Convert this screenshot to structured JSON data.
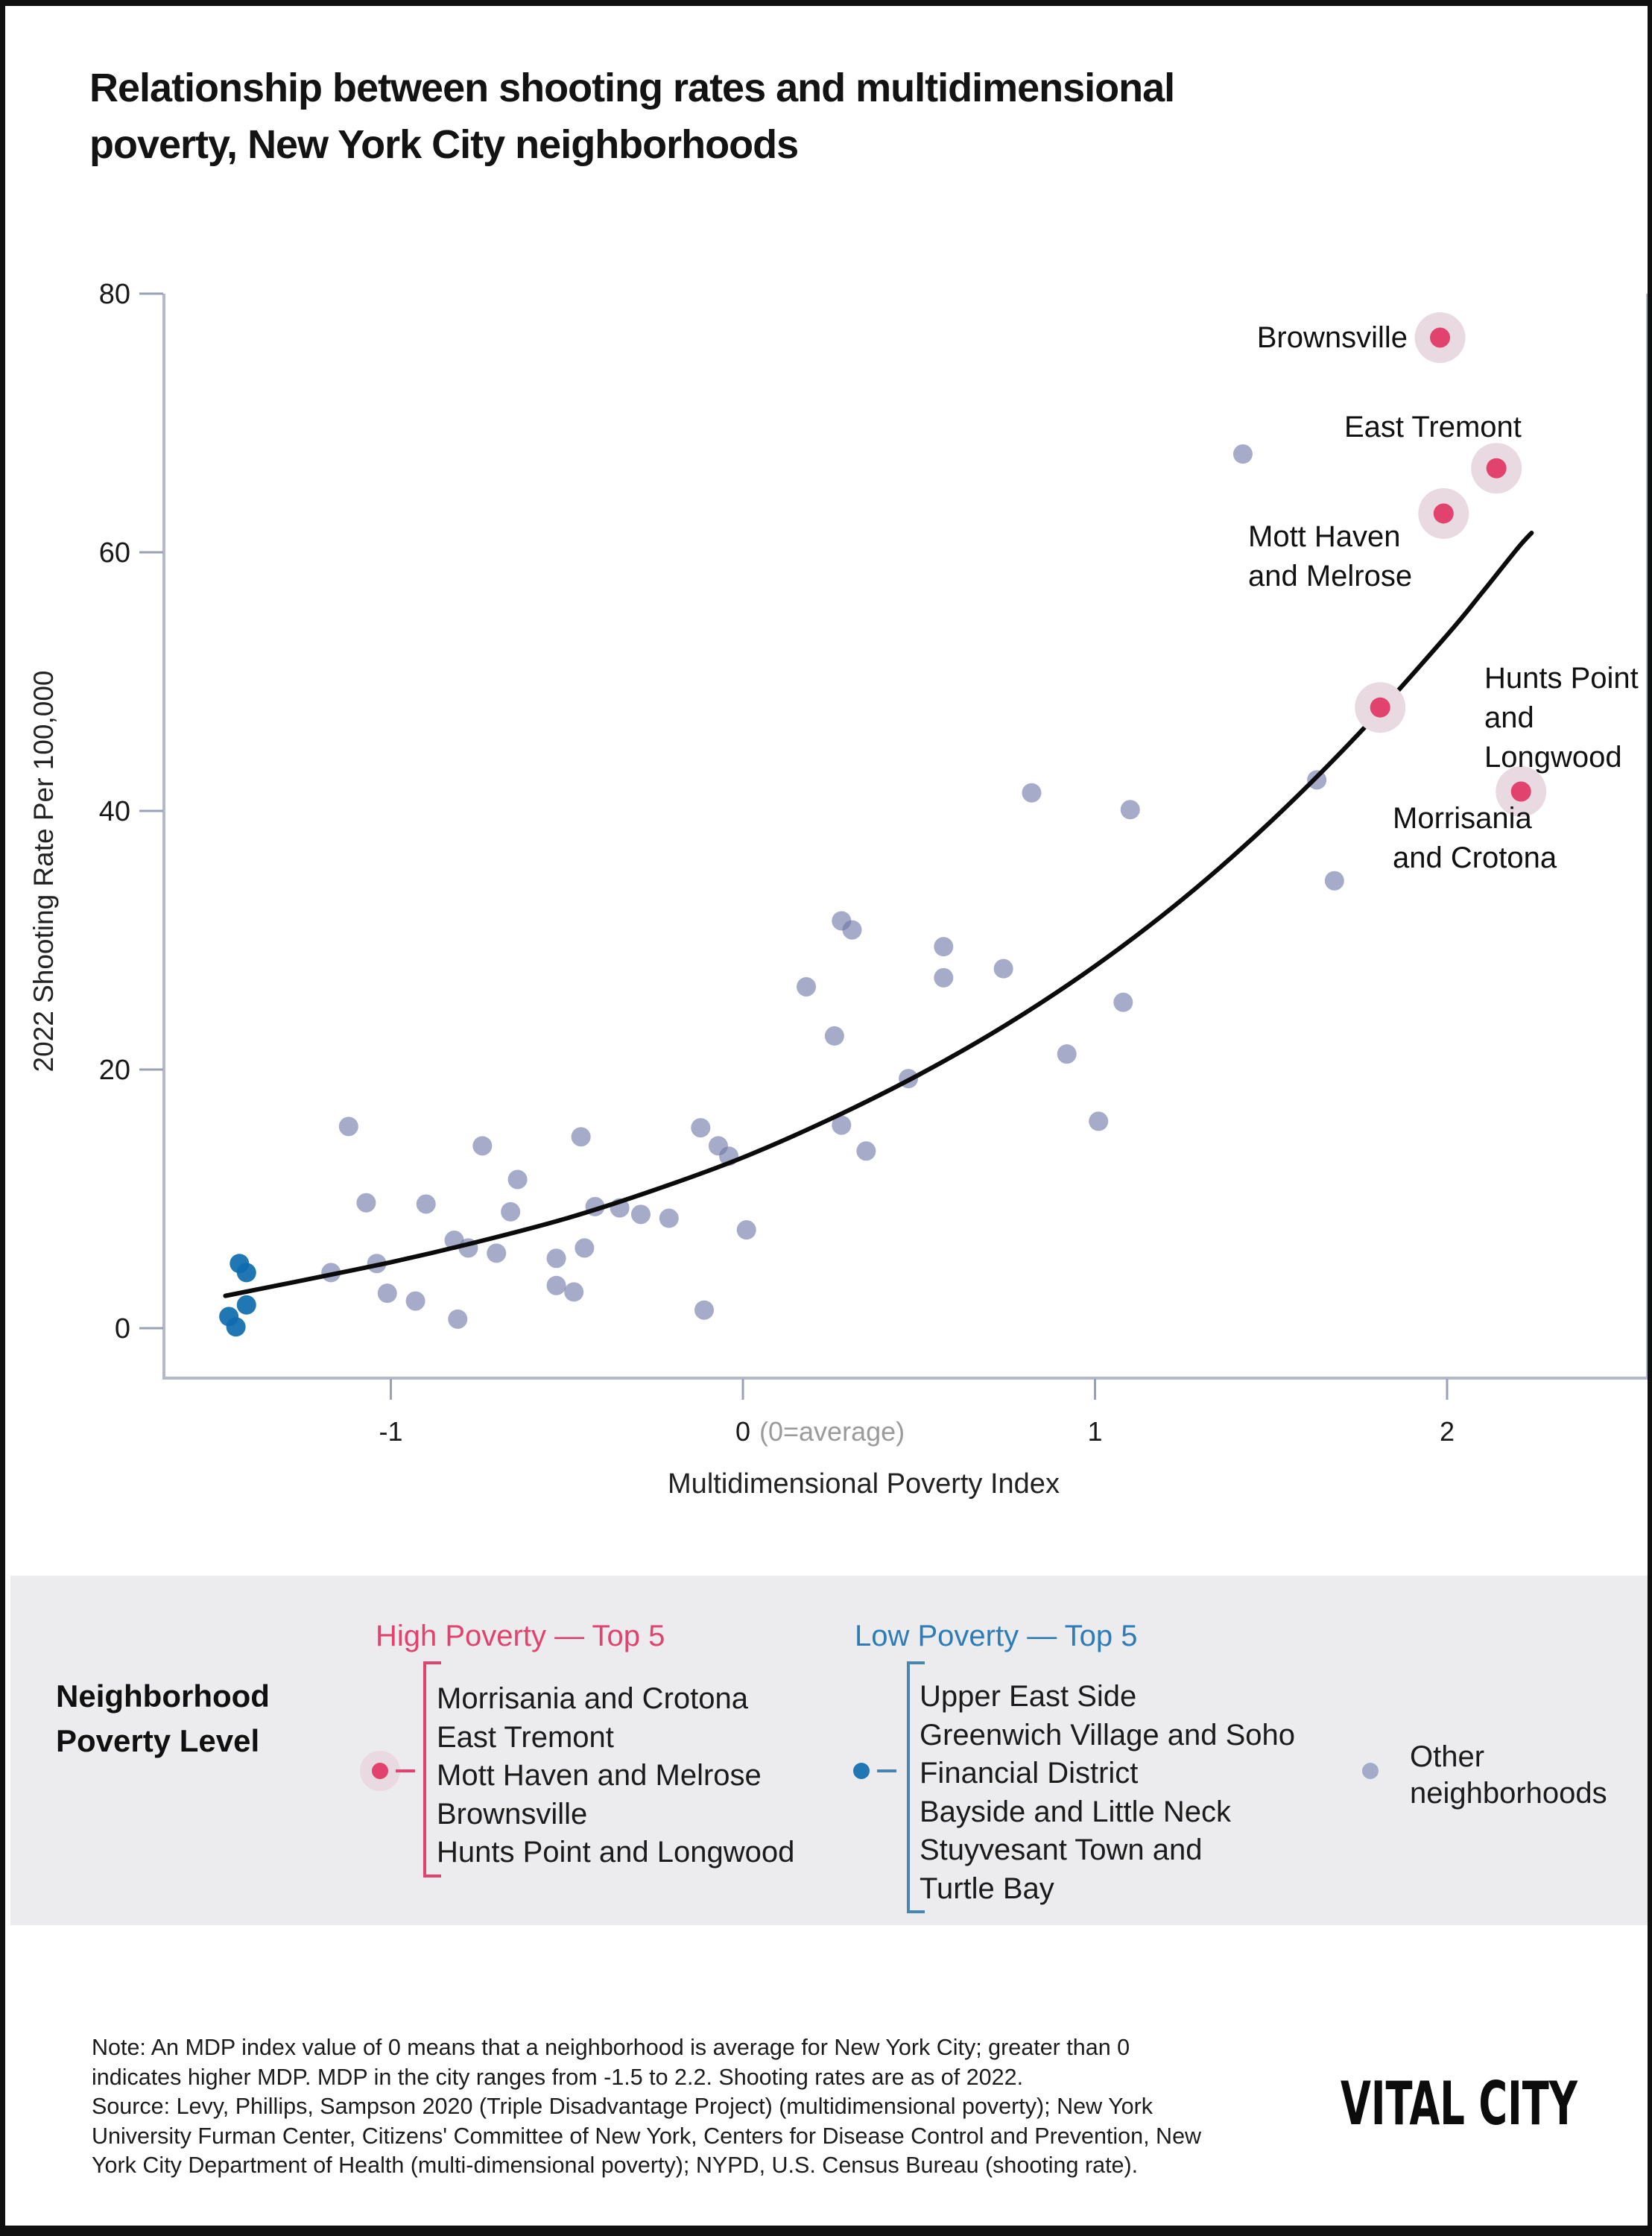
{
  "title": "Relationship between shooting rates and multidimensional\npoverty, New York City neighborhoods",
  "chart_data": {
    "type": "scatter",
    "title": "Relationship between shooting rates and multidimensional poverty, New York City neighborhoods",
    "xlabel": "Multidimensional Poverty Index",
    "ylabel": "2022 Shooting Rate Per 100,000",
    "xlim": [
      -1.65,
      2.57
    ],
    "ylim": [
      -3.9,
      80
    ],
    "grid": false,
    "x_ticks": [
      {
        "v": -1,
        "label": "-1"
      },
      {
        "v": 0,
        "label": "0",
        "note": "(0=average)"
      },
      {
        "v": 1,
        "label": "1"
      },
      {
        "v": 2,
        "label": "2"
      }
    ],
    "y_ticks": [
      {
        "v": 0,
        "label": "0"
      },
      {
        "v": 20,
        "label": "20"
      },
      {
        "v": 40,
        "label": "40"
      },
      {
        "v": 60,
        "label": "60"
      },
      {
        "v": 80,
        "label": "80"
      }
    ],
    "series": [
      {
        "name": "High Poverty — Top 5",
        "color": "#e2436e",
        "halo_color": "#e9dae1",
        "points": [
          {
            "name": "Brownsville",
            "x": 1.98,
            "y": 76.6
          },
          {
            "name": "East Tremont",
            "x": 2.14,
            "y": 66.5
          },
          {
            "name": "Mott Haven and Melrose",
            "x": 1.99,
            "y": 63.0
          },
          {
            "name": "Hunts Point and Longwood",
            "x": 1.81,
            "y": 48.0
          },
          {
            "name": "Morrisania and Crotona",
            "x": 2.21,
            "y": 41.5
          }
        ]
      },
      {
        "name": "Low Poverty — Top 5",
        "color": "#2176b4",
        "points": [
          {
            "name": "low-poverty-neighborhood",
            "x": -1.43,
            "y": 5.0
          },
          {
            "name": "low-poverty-neighborhood",
            "x": -1.41,
            "y": 4.3
          },
          {
            "name": "low-poverty-neighborhood",
            "x": -1.41,
            "y": 1.8
          },
          {
            "name": "low-poverty-neighborhood",
            "x": -1.46,
            "y": 0.9
          },
          {
            "name": "low-poverty-neighborhood",
            "x": -1.44,
            "y": 0.1
          }
        ]
      },
      {
        "name": "Other neighborhoods",
        "color": "#a4abc8",
        "points": [
          {
            "x": -1.12,
            "y": 15.6
          },
          {
            "x": -0.74,
            "y": 14.1
          },
          {
            "x": -0.46,
            "y": 14.8
          },
          {
            "x": -0.12,
            "y": 15.5
          },
          {
            "x": -0.07,
            "y": 14.1
          },
          {
            "x": -0.04,
            "y": 13.3
          },
          {
            "x": -0.64,
            "y": 11.5
          },
          {
            "x": -1.07,
            "y": 9.7
          },
          {
            "x": -0.9,
            "y": 9.6
          },
          {
            "x": -0.66,
            "y": 9.0
          },
          {
            "x": -0.42,
            "y": 9.4
          },
          {
            "x": -0.35,
            "y": 9.3
          },
          {
            "x": -0.29,
            "y": 8.8
          },
          {
            "x": -0.21,
            "y": 8.5
          },
          {
            "x": -0.82,
            "y": 6.8
          },
          {
            "x": -0.78,
            "y": 6.2
          },
          {
            "x": -0.7,
            "y": 5.8
          },
          {
            "x": -0.53,
            "y": 5.4
          },
          {
            "x": -0.45,
            "y": 6.2
          },
          {
            "x": -1.17,
            "y": 4.3
          },
          {
            "x": -1.04,
            "y": 5.0
          },
          {
            "x": -1.01,
            "y": 2.7
          },
          {
            "x": -0.93,
            "y": 2.1
          },
          {
            "x": -0.81,
            "y": 0.7
          },
          {
            "x": -0.53,
            "y": 3.3
          },
          {
            "x": -0.48,
            "y": 2.8
          },
          {
            "x": -0.11,
            "y": 1.4
          },
          {
            "x": 0.01,
            "y": 7.6
          },
          {
            "x": 0.26,
            "y": 22.6
          },
          {
            "x": 0.47,
            "y": 19.3
          },
          {
            "x": 0.92,
            "y": 21.2
          },
          {
            "x": 1.01,
            "y": 16.0
          },
          {
            "x": 0.28,
            "y": 15.7
          },
          {
            "x": 0.35,
            "y": 13.7
          },
          {
            "x": 0.82,
            "y": 41.4
          },
          {
            "x": 1.1,
            "y": 40.1
          },
          {
            "x": 0.28,
            "y": 31.5
          },
          {
            "x": 0.31,
            "y": 30.8
          },
          {
            "x": 0.57,
            "y": 29.5
          },
          {
            "x": 0.74,
            "y": 27.8
          },
          {
            "x": 0.57,
            "y": 27.1
          },
          {
            "x": 0.18,
            "y": 26.4
          },
          {
            "x": 1.08,
            "y": 25.2
          },
          {
            "x": 1.63,
            "y": 42.4
          },
          {
            "x": 1.68,
            "y": 34.6
          },
          {
            "x": 1.42,
            "y": 67.6
          }
        ]
      }
    ],
    "trend_line": [
      [
        -1.47,
        2.5
      ],
      [
        -1.25,
        3.7
      ],
      [
        -1.0,
        5.1
      ],
      [
        -0.75,
        6.7
      ],
      [
        -0.5,
        8.5
      ],
      [
        -0.25,
        10.7
      ],
      [
        0,
        13.2
      ],
      [
        0.25,
        16.2
      ],
      [
        0.5,
        19.6
      ],
      [
        0.75,
        23.5
      ],
      [
        1.0,
        28.0
      ],
      [
        1.25,
        33.2
      ],
      [
        1.5,
        39.2
      ],
      [
        1.75,
        46.0
      ],
      [
        2.0,
        53.6
      ],
      [
        2.1,
        56.9
      ],
      [
        2.2,
        60.3
      ],
      [
        2.24,
        61.5
      ]
    ]
  },
  "annotations": [
    {
      "text": "Brownsville"
    },
    {
      "text": "East Tremont"
    },
    {
      "text": "Mott Haven\nand Melrose"
    },
    {
      "text": "Hunts Point\nand Longwood"
    },
    {
      "text": "Morrisania\nand Crotona"
    }
  ],
  "axis": {
    "x_label": "Multidimensional Poverty Index",
    "y_label": "2022 Shooting Rate Per 100,000",
    "x_note_color": "#9b9b9b"
  },
  "legend": {
    "title": "Neighborhood\nPoverty Level",
    "high": {
      "heading": "High Poverty — Top 5",
      "items": [
        "Morrisania and Crotona",
        "East Tremont",
        "Mott Haven and Melrose",
        "Brownsville",
        "Hunts Point and Longwood"
      ]
    },
    "low": {
      "heading": "Low Poverty — Top 5",
      "items": [
        "Upper East Side",
        "Greenwich Village and Soho",
        "Financial District",
        "Bayside and Little Neck",
        "Stuyvesant Town and\nTurtle Bay"
      ]
    },
    "other": {
      "label": "Other neighborhoods"
    }
  },
  "note": "Note: An MDP index value of 0 means that a neighborhood is average for New York City; greater than 0\nindicates higher MDP. MDP in the city ranges from -1.5 to 2.2. Shooting rates are as of 2022.\nSource: Levy, Phillips, Sampson 2020 (Triple Disadvantage Project) (multidimensional poverty); New York\nUniversity Furman Center, Citizens' Committee of New York, Centers for Disease Control and Prevention, New\nYork City Department of Health (multi-dimensional poverty); NYPD, U.S. Census Bureau (shooting rate).",
  "logo": "VITAL CITY",
  "colors": {
    "high_poverty": "#e2436e",
    "high_halo": "#e9dae1",
    "low_poverty": "#2176b4",
    "other": "#a4abc8",
    "frame": "#b3b8cb",
    "tick": "#9aa0b5",
    "trend": "#0b0b0b",
    "band": "#ececee"
  }
}
